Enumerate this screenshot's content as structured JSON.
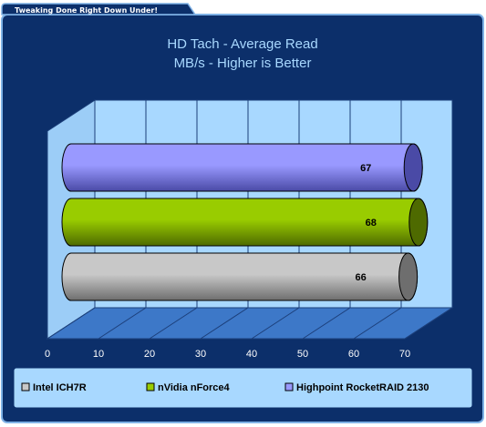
{
  "banner": {
    "text": "Tweaking Done Right Down Under!"
  },
  "chart_data": {
    "type": "bar",
    "orientation": "horizontal",
    "style": "3d-cylinder",
    "title": "HD Tach - Average Read",
    "subtitle": "MB/s - Higher is Better",
    "xlim": [
      0,
      70
    ],
    "ticks": [
      "0",
      "10",
      "20",
      "30",
      "40",
      "50",
      "60",
      "70"
    ],
    "grid": true,
    "legend_position": "bottom",
    "series": [
      {
        "name": "Intel ICH7R",
        "value": 66,
        "color": "#c8c8c8",
        "dark": "#6e6e6e"
      },
      {
        "name": "nVidia nForce4",
        "value": 68,
        "color": "#99cc00",
        "dark": "#4e6a00"
      },
      {
        "name": "Highpoint RocketRAID 2130",
        "value": 67,
        "color": "#9999ff",
        "dark": "#4a4aa6"
      }
    ]
  },
  "colors": {
    "frame": "#0c2f6a",
    "border": "#7fb2e6",
    "plot_back": "#a8d8ff",
    "plot_floor": "#3d78c8",
    "legend_back": "#a8d8ff"
  }
}
